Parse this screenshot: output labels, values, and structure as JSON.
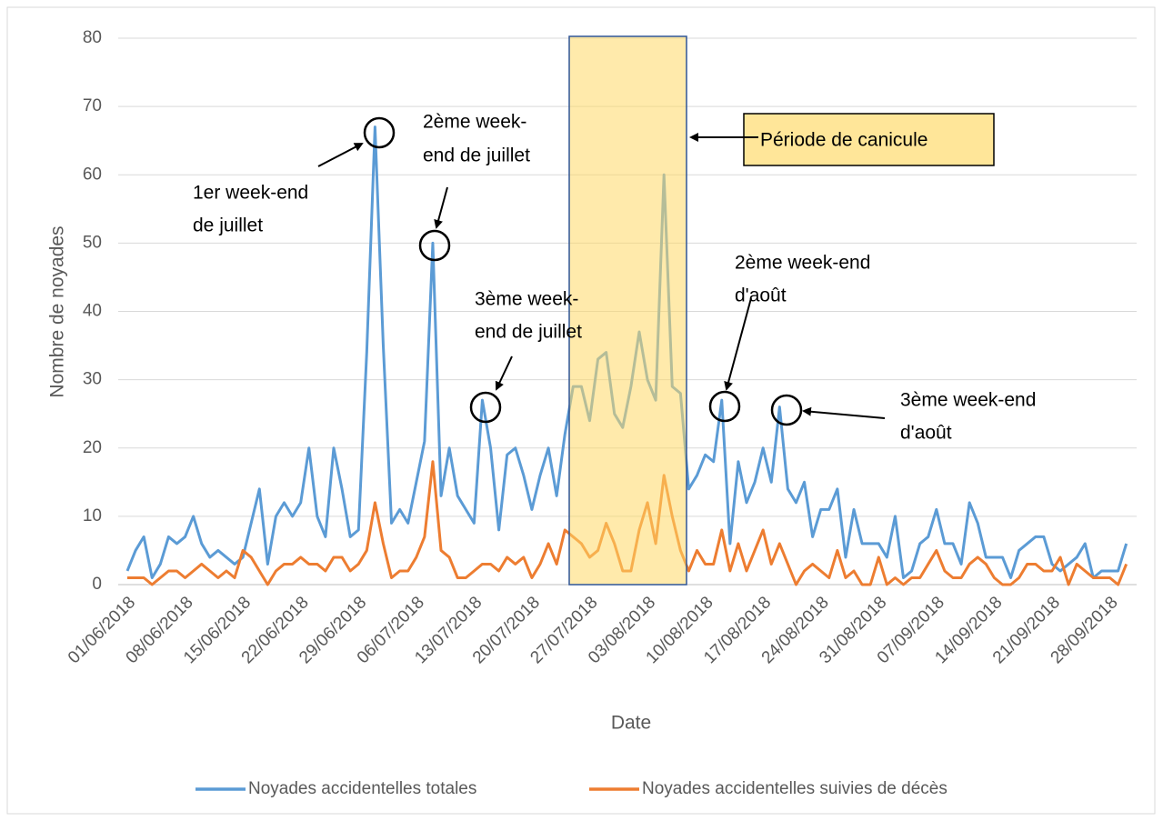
{
  "chart_data": {
    "type": "line",
    "x_label": "Date",
    "y_label": "Nombre de noyades",
    "categories": [
      "01/06/2018",
      null,
      null,
      null,
      null,
      null,
      null,
      "08/06/2018",
      null,
      null,
      null,
      null,
      null,
      null,
      "15/06/2018",
      null,
      null,
      null,
      null,
      null,
      null,
      "22/06/2018",
      null,
      null,
      null,
      null,
      null,
      null,
      "29/06/2018",
      null,
      null,
      null,
      null,
      null,
      null,
      "06/07/2018",
      null,
      null,
      null,
      null,
      null,
      null,
      "13/07/2018",
      null,
      null,
      null,
      null,
      null,
      null,
      "20/07/2018",
      null,
      null,
      null,
      null,
      null,
      null,
      "27/07/2018",
      null,
      null,
      null,
      null,
      null,
      null,
      "03/08/2018",
      null,
      null,
      null,
      null,
      null,
      null,
      "10/08/2018",
      null,
      null,
      null,
      null,
      null,
      null,
      "17/08/2018",
      null,
      null,
      null,
      null,
      null,
      null,
      "24/08/2018",
      null,
      null,
      null,
      null,
      null,
      null,
      "31/08/2018",
      null,
      null,
      null,
      null,
      null,
      null,
      "07/09/2018",
      null,
      null,
      null,
      null,
      null,
      null,
      "14/09/2018",
      null,
      null,
      null,
      null,
      null,
      null,
      "21/09/2018",
      null,
      null,
      null,
      null,
      null,
      null,
      "28/09/2018",
      null,
      null
    ],
    "series": [
      {
        "name": "Noyades accidentelles totales",
        "color": "#5b9bd5",
        "values": [
          2,
          5,
          7,
          1,
          3,
          7,
          6,
          7,
          10,
          6,
          4,
          5,
          4,
          3,
          4,
          9,
          14,
          3,
          10,
          12,
          10,
          12,
          20,
          10,
          7,
          20,
          14,
          7,
          8,
          34,
          67,
          35,
          9,
          11,
          9,
          15,
          21,
          50,
          13,
          20,
          13,
          11,
          9,
          27,
          20,
          8,
          19,
          20,
          16,
          11,
          16,
          20,
          13,
          22,
          29,
          29,
          24,
          33,
          34,
          25,
          23,
          29,
          37,
          30,
          27,
          60,
          29,
          28,
          14,
          16,
          19,
          18,
          27,
          6,
          18,
          12,
          15,
          20,
          15,
          26,
          14,
          12,
          15,
          7,
          11,
          11,
          14,
          4,
          11,
          6,
          6,
          6,
          4,
          10,
          1,
          2,
          6,
          7,
          11,
          6,
          6,
          3,
          12,
          9,
          4,
          4,
          4,
          1,
          5,
          6,
          7,
          7,
          3,
          2,
          3,
          4,
          6,
          1,
          2,
          2,
          2,
          6
        ]
      },
      {
        "name": "Noyades accidentelles suivies de décès",
        "color": "#ed7d31",
        "values": [
          1,
          1,
          1,
          0,
          1,
          2,
          2,
          1,
          2,
          3,
          2,
          1,
          2,
          1,
          5,
          4,
          2,
          0,
          2,
          3,
          3,
          4,
          3,
          3,
          2,
          4,
          4,
          2,
          3,
          5,
          12,
          6,
          1,
          2,
          2,
          4,
          7,
          18,
          5,
          4,
          1,
          1,
          2,
          3,
          3,
          2,
          4,
          3,
          4,
          1,
          3,
          6,
          3,
          8,
          7,
          6,
          4,
          5,
          9,
          6,
          2,
          2,
          8,
          12,
          6,
          16,
          10,
          5,
          2,
          5,
          3,
          3,
          8,
          2,
          6,
          2,
          5,
          8,
          3,
          6,
          3,
          0,
          2,
          3,
          2,
          1,
          5,
          1,
          2,
          0,
          0,
          4,
          0,
          1,
          0,
          1,
          1,
          3,
          5,
          2,
          1,
          1,
          3,
          4,
          3,
          1,
          0,
          0,
          1,
          3,
          3,
          2,
          2,
          4,
          0,
          3,
          2,
          1,
          1,
          1,
          0,
          3
        ]
      }
    ],
    "ylim": [
      0,
      80
    ],
    "yticks": [
      0,
      10,
      20,
      30,
      40,
      50,
      60,
      70,
      80
    ],
    "grid": true,
    "legend": "bottom",
    "annotations": [
      {
        "lines": [
          "1er week-end",
          "de juillet"
        ]
      },
      {
        "lines": [
          "2ème week-",
          "end de juillet"
        ]
      },
      {
        "lines": [
          "3ème week-",
          "end de juillet"
        ]
      },
      {
        "lines": [
          "2ème week-end",
          "d'août"
        ]
      },
      {
        "lines": [
          "3ème week-end",
          "d'août"
        ]
      }
    ],
    "highlight_label": "Période de canicule"
  }
}
